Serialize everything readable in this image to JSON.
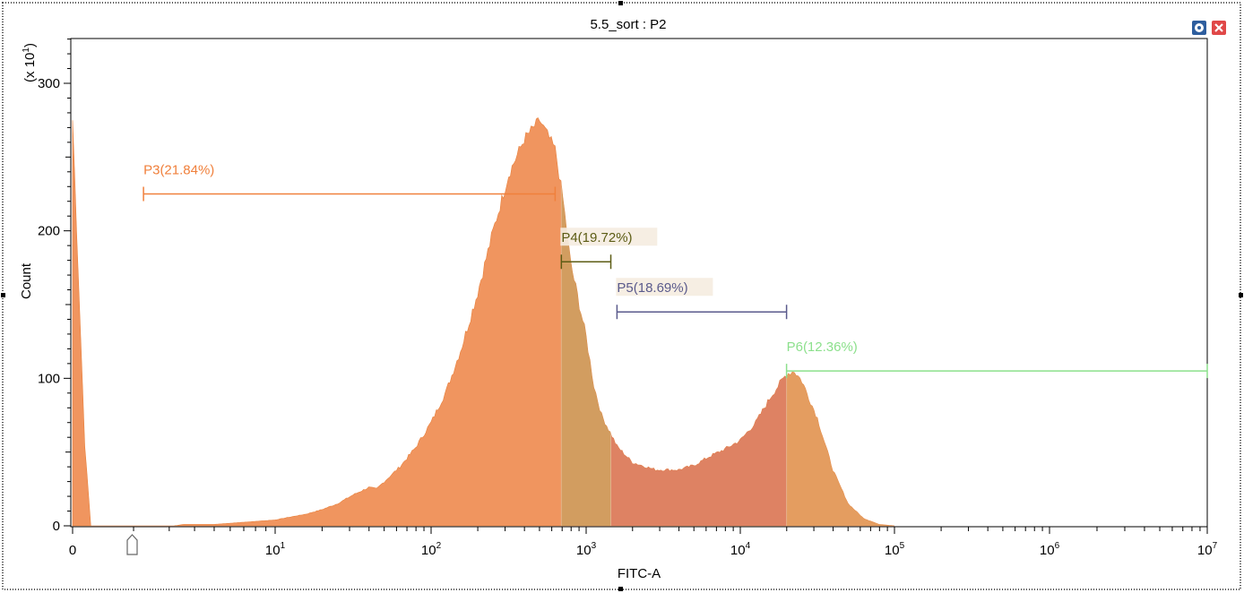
{
  "window": {
    "title": "5.5_sort : P2",
    "settings_icon": "gear-icon",
    "close_icon": "close-icon"
  },
  "chart_data": {
    "type": "histogram",
    "title": "5.5_sort : P2",
    "xlabel": "FITC-A",
    "ylabel": "Count",
    "y_multiplier": "(x 10",
    "y_multiplier_exp": "1",
    "y_multiplier_close": ")",
    "xscale": "biexponential",
    "ylim": [
      0,
      330
    ],
    "yticks": [
      0,
      100,
      200,
      300
    ],
    "ytick_labels": [
      "0",
      "100",
      "200",
      "300"
    ],
    "xticks": [
      {
        "value": 0,
        "base": "0",
        "exp": ""
      },
      {
        "value": 10,
        "base": "10",
        "exp": "1"
      },
      {
        "value": 100,
        "base": "10",
        "exp": "2"
      },
      {
        "value": 1000,
        "base": "10",
        "exp": "3"
      },
      {
        "value": 10000,
        "base": "10",
        "exp": "4"
      },
      {
        "value": 100000,
        "base": "10",
        "exp": "5"
      },
      {
        "value": 1000000,
        "base": "10",
        "exp": "6"
      },
      {
        "value": 10000000,
        "base": "10",
        "exp": "7"
      }
    ],
    "histogram": {
      "color": "#f0955f",
      "points": [
        [
          0,
          275
        ],
        [
          0.03,
          165
        ],
        [
          0.06,
          55
        ],
        [
          0.09,
          0
        ],
        [
          0.5,
          0
        ],
        [
          0.55,
          1
        ],
        [
          0.7,
          1
        ],
        [
          0.8,
          2
        ],
        [
          0.9,
          3
        ],
        [
          1.0,
          4
        ],
        [
          1.1,
          6
        ],
        [
          1.2,
          8
        ],
        [
          1.3,
          11
        ],
        [
          1.4,
          15
        ],
        [
          1.5,
          21
        ],
        [
          1.6,
          26
        ],
        [
          1.65,
          25
        ],
        [
          1.7,
          30
        ],
        [
          1.8,
          40
        ],
        [
          1.9,
          53
        ],
        [
          2.0,
          70
        ],
        [
          2.1,
          92
        ],
        [
          2.2,
          122
        ],
        [
          2.3,
          158
        ],
        [
          2.4,
          200
        ],
        [
          2.5,
          238
        ],
        [
          2.6,
          262
        ],
        [
          2.7,
          275
        ],
        [
          2.75,
          265
        ],
        [
          2.8,
          255
        ],
        [
          2.85,
          222
        ],
        [
          2.9,
          178
        ],
        [
          3.0,
          128
        ],
        [
          3.05,
          95
        ],
        [
          3.1,
          75
        ],
        [
          3.2,
          54
        ],
        [
          3.3,
          43
        ],
        [
          3.45,
          38
        ],
        [
          3.6,
          38
        ],
        [
          3.7,
          41
        ],
        [
          3.8,
          47
        ],
        [
          3.9,
          52
        ],
        [
          4.0,
          58
        ],
        [
          4.1,
          70
        ],
        [
          4.2,
          88
        ],
        [
          4.3,
          103
        ],
        [
          4.35,
          105
        ],
        [
          4.4,
          98
        ],
        [
          4.5,
          73
        ],
        [
          4.6,
          38
        ],
        [
          4.7,
          15
        ],
        [
          4.8,
          5
        ],
        [
          4.9,
          1
        ],
        [
          5.0,
          0
        ]
      ]
    },
    "gates": [
      {
        "name": "P3",
        "label": "P3(21.84%)",
        "percent": 21.84,
        "color": "#f0803c",
        "x_start": 0.35,
        "x_end": 2.8,
        "y": 225,
        "label_bg": false
      },
      {
        "name": "P4",
        "label": "P4(19.72%)",
        "percent": 19.72,
        "color": "#5c5c14",
        "x_start": 2.84,
        "x_end": 3.16,
        "y": 179,
        "label_bg": true
      },
      {
        "name": "P5",
        "label": "P5(18.69%)",
        "percent": 18.69,
        "color": "#5a5a8c",
        "x_start": 3.2,
        "x_end": 4.3,
        "y": 145,
        "label_bg": true
      },
      {
        "name": "P6",
        "label": "P6(12.36%)",
        "percent": 12.36,
        "color": "#8ce08c",
        "x_start": 4.3,
        "x_end": 7.2,
        "y": 105,
        "label_bg": false
      }
    ],
    "gate_shading": [
      {
        "x_start": 2.84,
        "x_end": 3.16,
        "color": "#c8a060"
      },
      {
        "x_start": 3.16,
        "x_end": 4.3,
        "color": "#d87c64"
      },
      {
        "x_start": 4.3,
        "x_end": 7.2,
        "color": "#e0a060"
      }
    ]
  }
}
